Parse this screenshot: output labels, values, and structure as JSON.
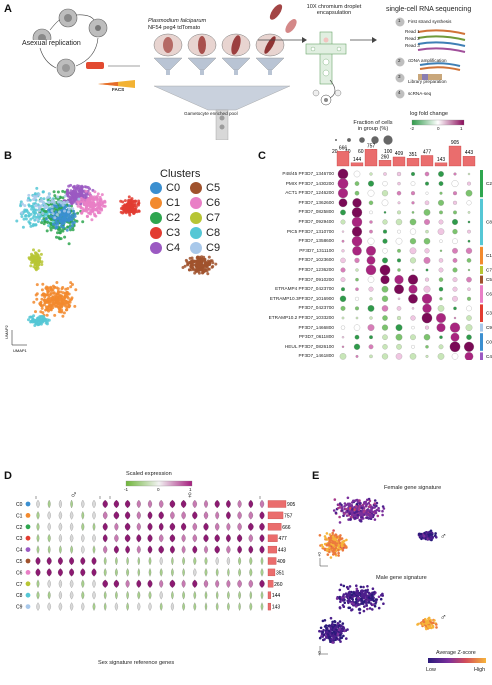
{
  "panel_labels": {
    "a": "A",
    "b": "B",
    "c": "C",
    "d": "D",
    "e": "E"
  },
  "panel_a": {
    "asexual_replication": "Asexual replication",
    "facs": "FACS",
    "strain_line1": "Plasmodium falciparum",
    "strain_line2": "NF54 peg4 tdTomato",
    "day_labels": [
      "-3\nDay",
      "-2\nDay",
      "-1\nDay",
      "0\nDay"
    ],
    "timeline_days": [
      "1\nDay",
      "3\nDay",
      "5\nDay",
      "7\nDay"
    ],
    "gametocyte_pool": "Gametocyte enriched pool",
    "encapsulation_title": "10X chromium droplet\nencapsulation",
    "sequencing_title": "single-cell RNA sequencing",
    "steps": [
      {
        "n": "1",
        "text": "First strand synthesis"
      },
      {
        "n": "2",
        "text": "cDNA amplification"
      },
      {
        "n": "3",
        "text": "Library preparation"
      },
      {
        "n": "4",
        "text": "scRNA-seq"
      }
    ],
    "read_labels": [
      "Read 1",
      "Read 2",
      "Read 3"
    ]
  },
  "panel_b": {
    "legend_title": "Clusters",
    "clusters": [
      {
        "name": "C0",
        "color": "#3b8fd0"
      },
      {
        "name": "C1",
        "color": "#f28a2e"
      },
      {
        "name": "C2",
        "color": "#2ea64f"
      },
      {
        "name": "C3",
        "color": "#e23c31"
      },
      {
        "name": "C4",
        "color": "#9b59c2"
      },
      {
        "name": "C5",
        "color": "#a0522d"
      },
      {
        "name": "C6",
        "color": "#e97fc6"
      },
      {
        "name": "C7",
        "color": "#b7c534"
      },
      {
        "name": "C8",
        "color": "#55c7d5"
      },
      {
        "name": "C9",
        "color": "#a8c8ea"
      }
    ],
    "umap2": "UMAP2",
    "umap1": "UMAP1"
  },
  "panel_c": {
    "size_legend_title": "Fraction of cells\nin group (%)",
    "size_legend_values": [
      "20",
      "40",
      "60",
      "80",
      "100"
    ],
    "color_legend_title": "log fold change",
    "color_legend_ticks": [
      "-2",
      "0",
      "1"
    ],
    "genes": [
      "P48/45 PF3D7_1346700",
      "PMIX PF3D7_1430200",
      "ACT1 PF3D7_1246200",
      "PF3D7_1362600",
      "PF3D7_0825800",
      "PF3D7_0929400",
      "PIC5 PF3D7_1310700",
      "PF3D7_1358600",
      "PF3D7_1311100",
      "PF3D7_1023600",
      "PF3D7_1236200",
      "PF3D7_0910200",
      "ETRAMP4 PF3D7_0423700",
      "ETRAMP10.3PF3D7_1016900",
      "PF3D7_0423700",
      "ETRAMP10.2 PF3D7_1033200",
      "PF3D7_1466800",
      "PF3D7_0611800",
      "HEUL PF3D7_0826100",
      "PF3D7_1461800"
    ],
    "cluster_order": [
      "C2",
      "C8",
      "C1",
      "C7",
      "C5",
      "C6",
      "C3",
      "C9",
      "C0",
      "C4"
    ],
    "bar_labels": [
      "666",
      "144",
      "757",
      "260",
      "409",
      "351",
      "477",
      "143",
      "905",
      "443"
    ],
    "group_brackets": [
      "C2",
      "C8",
      "C1",
      "C7",
      "C5",
      "C6",
      "C3",
      "C9",
      "C0",
      "C4"
    ]
  },
  "panel_d": {
    "color_legend_title": "Scaled expression",
    "color_legend_ticks": [
      "-1",
      "0",
      "1"
    ],
    "male_symbol": "♂",
    "female_symbol": "♀",
    "rows": [
      "C0",
      "C1",
      "C2",
      "C3",
      "C4",
      "C5",
      "C6",
      "C7",
      "C8",
      "C9"
    ],
    "counts": [
      "905",
      "757",
      "666",
      "477",
      "443",
      "409",
      "351",
      "260",
      "144",
      "143"
    ],
    "x_caption": "Sex signature reference genes"
  },
  "panel_e": {
    "female_title": "Female gene signature",
    "male_title": "Male gene signature",
    "colorbar_title": "Average Z-score",
    "low": "Low",
    "high": "High",
    "male_symbol": "♂",
    "female_symbol": "♀"
  },
  "chart_data": [
    {
      "type": "bar",
      "title": "",
      "categories": [
        "C2",
        "C8",
        "C1",
        "C7",
        "C5",
        "C6",
        "C3",
        "C9",
        "C0",
        "C4"
      ],
      "values": [
        666,
        144,
        757,
        260,
        409,
        351,
        477,
        143,
        905,
        443
      ]
    },
    {
      "type": "bar",
      "title": "",
      "categories": [
        "C0",
        "C1",
        "C2",
        "C3",
        "C4",
        "C5",
        "C6",
        "C7",
        "C8",
        "C9"
      ],
      "values": [
        905,
        757,
        666,
        477,
        443,
        409,
        351,
        260,
        144,
        143
      ]
    }
  ]
}
